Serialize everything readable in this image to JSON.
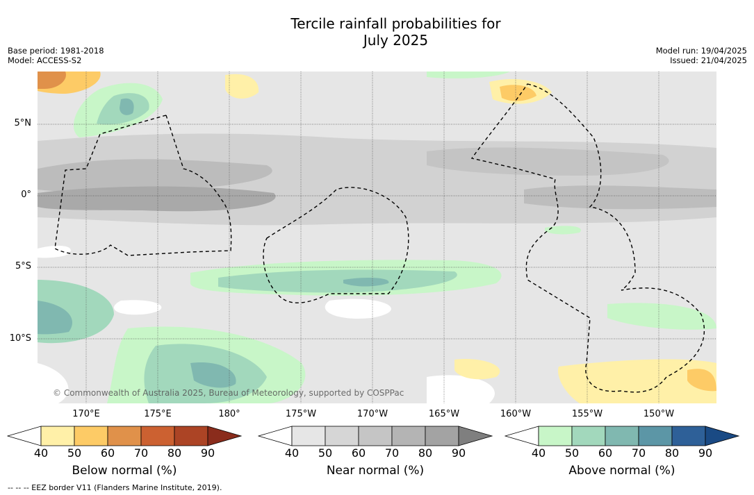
{
  "title_line1": "Tercile rainfall probabilities for",
  "title_line2": "July 2025",
  "meta_left": {
    "base_period": "Base period: 1981-2018",
    "model": "Model: ACCESS-S2"
  },
  "meta_right": {
    "model_run": "Model run: 19/04/2025",
    "issued": "Issued: 21/04/2025"
  },
  "lat_labels": [
    "5°N",
    "0°",
    "5°S",
    "10°S"
  ],
  "lon_labels": [
    "170°E",
    "175°E",
    "180°",
    "175°W",
    "170°W",
    "165°W",
    "160°W",
    "155°W",
    "150°W"
  ],
  "copyright": "© Commonwealth of Australia 2025, Bureau of Meteorology, supported by COSPPac",
  "colorbars": {
    "below": {
      "label": "Below normal (%)",
      "ticks": [
        "40",
        "50",
        "60",
        "70",
        "80",
        "90"
      ],
      "colors": [
        "#ffffff",
        "#fff0a8",
        "#fdcb66",
        "#e0914a",
        "#cc6131",
        "#ac4425",
        "#8a2c1c"
      ]
    },
    "near": {
      "label": "Near normal (%)",
      "ticks": [
        "40",
        "50",
        "60",
        "70",
        "80",
        "90"
      ],
      "colors": [
        "#ffffff",
        "#e6e6e6",
        "#d6d6d6",
        "#c5c5c5",
        "#b4b4b4",
        "#a3a3a3",
        "#7f7f7f"
      ]
    },
    "above": {
      "label": "Above normal (%)",
      "ticks": [
        "40",
        "50",
        "60",
        "70",
        "80",
        "90"
      ],
      "colors": [
        "#ffffff",
        "#c8f6c8",
        "#a2d8bc",
        "#80b8b0",
        "#5c96a6",
        "#2e6098",
        "#1a4a84"
      ]
    }
  },
  "eez_note": "-- -- -- EEZ border V11 (Flanders Marine Institute, 2019)."
}
